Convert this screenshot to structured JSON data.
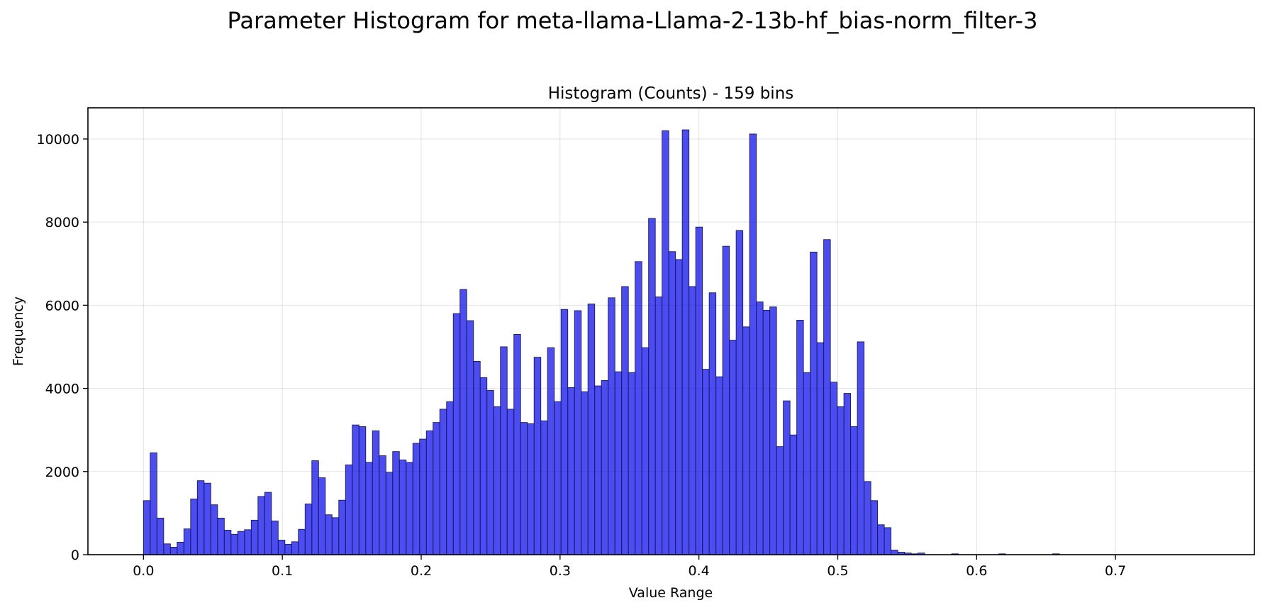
{
  "figure_title": "Parameter Histogram for meta-llama-Llama-2-13b-hf_bias-norm_filter-3",
  "chart_data": {
    "type": "bar",
    "title": "Histogram (Counts) - 159 bins",
    "xlabel": "Value Range",
    "ylabel": "Frequency",
    "xlim": [
      -0.04,
      0.8
    ],
    "ylim": [
      0,
      10750
    ],
    "x_ticks": [
      0.0,
      0.1,
      0.2,
      0.3,
      0.4,
      0.5,
      0.6,
      0.7
    ],
    "x_tick_labels": [
      "0.0",
      "0.1",
      "0.2",
      "0.3",
      "0.4",
      "0.5",
      "0.6",
      "0.7"
    ],
    "y_ticks": [
      0,
      2000,
      4000,
      6000,
      8000,
      10000
    ],
    "y_tick_labels": [
      "0",
      "2000",
      "4000",
      "6000",
      "8000",
      "10000"
    ],
    "grid": true,
    "bar_color": "#0000ee",
    "bar_opacity": 0.7,
    "bin_start": 0.0,
    "bin_width": 0.00485,
    "values": [
      1300,
      2450,
      880,
      260,
      180,
      300,
      620,
      1340,
      1780,
      1720,
      1200,
      880,
      590,
      490,
      560,
      600,
      830,
      1400,
      1500,
      810,
      350,
      250,
      310,
      610,
      1220,
      2260,
      1850,
      960,
      890,
      1310,
      2160,
      3120,
      3080,
      2220,
      2980,
      2380,
      1980,
      2480,
      2280,
      2220,
      2680,
      2780,
      2980,
      3180,
      3500,
      3680,
      5800,
      6380,
      5630,
      4650,
      4260,
      3950,
      3560,
      5000,
      3500,
      5300,
      3180,
      3150,
      4750,
      3220,
      4980,
      3680,
      5900,
      4020,
      5870,
      3920,
      6030,
      4060,
      4190,
      6180,
      4400,
      6450,
      4380,
      7050,
      4980,
      8090,
      6200,
      10200,
      7290,
      7100,
      10220,
      6450,
      7880,
      4460,
      6300,
      4280,
      7420,
      5160,
      7800,
      5480,
      10120,
      6080,
      5880,
      5960,
      2600,
      3700,
      2880,
      5640,
      4380,
      7280,
      5100,
      7580,
      4150,
      3560,
      3880,
      3080,
      5120,
      1760,
      1300,
      720,
      650,
      110,
      60,
      40,
      20,
      40,
      0,
      0,
      0,
      0,
      20,
      0,
      0,
      0,
      0,
      0,
      0,
      20,
      0,
      0,
      0,
      0,
      0,
      0,
      0,
      20,
      0,
      0,
      0,
      0,
      0,
      0,
      0,
      0,
      0,
      0,
      0,
      0,
      0,
      0,
      0,
      0,
      0,
      0,
      0,
      0,
      0,
      0,
      0,
      0,
      0,
      0,
      0,
      0,
      0,
      0,
      0
    ]
  }
}
